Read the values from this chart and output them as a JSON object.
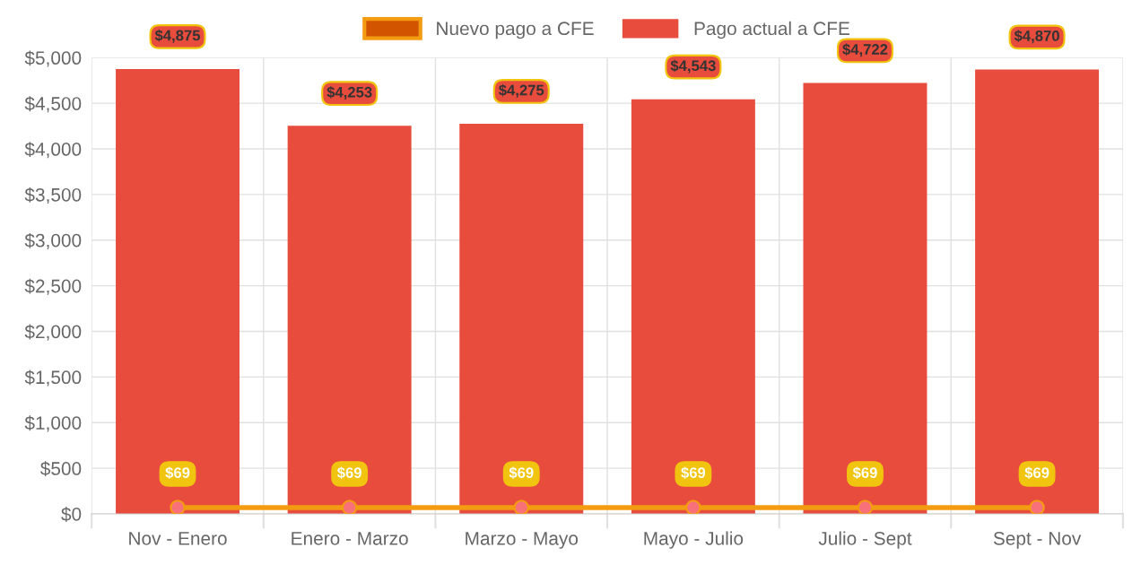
{
  "chart_data": {
    "type": "bar",
    "categories": [
      "Nov - Enero",
      "Enero - Marzo",
      "Marzo - Mayo",
      "Mayo - Julio",
      "Julio - Sept",
      "Sept - Nov"
    ],
    "series": [
      {
        "name": "Nuevo pago a CFE",
        "type": "line",
        "color": "#f39c12",
        "values": [
          69,
          69,
          69,
          69,
          69,
          69
        ],
        "value_labels": [
          "$69",
          "$69",
          "$69",
          "$69",
          "$69",
          "$69"
        ]
      },
      {
        "name": "Pago actual a CFE",
        "color": "#e74c3c",
        "values": [
          4875,
          4253,
          4275,
          4543,
          4722,
          4870
        ],
        "value_labels": [
          "$4,875",
          "$4,253",
          "$4,275",
          "$4,543",
          "$4,722",
          "$4,870"
        ]
      }
    ],
    "ylim": [
      0,
      5000
    ],
    "yticks": [
      {
        "value": 0,
        "label": "$0"
      },
      {
        "value": 500,
        "label": "$500"
      },
      {
        "value": 1000,
        "label": "$1,000"
      },
      {
        "value": 1500,
        "label": "$1,500"
      },
      {
        "value": 2000,
        "label": "$2,000"
      },
      {
        "value": 2500,
        "label": "$2,500"
      },
      {
        "value": 3000,
        "label": "$3,000"
      },
      {
        "value": 3500,
        "label": "$3,500"
      },
      {
        "value": 4000,
        "label": "$4,000"
      },
      {
        "value": 4500,
        "label": "$4,500"
      },
      {
        "value": 5000,
        "label": "$5,000"
      }
    ],
    "grid": true,
    "legend": "top",
    "marker": "circle"
  }
}
